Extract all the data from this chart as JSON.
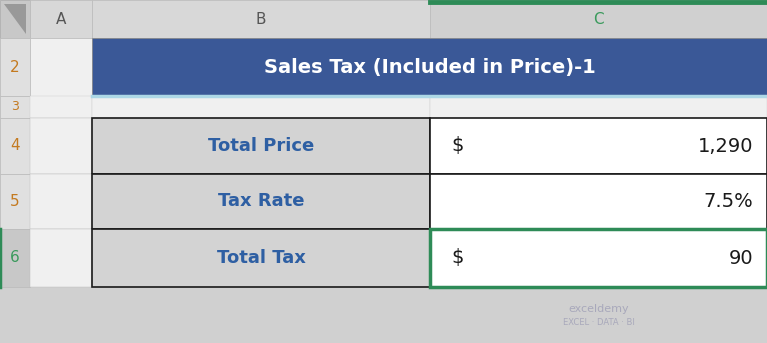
{
  "title": "Sales Tax (Included in Price)-1",
  "title_bg": "#3A5897",
  "title_fg": "#FFFFFF",
  "table_rows": [
    {
      "label": "Total Price",
      "dollar": "$",
      "value": "1,290"
    },
    {
      "label": "Tax Rate",
      "dollar": "",
      "value": "7.5%"
    },
    {
      "label": "Total Tax",
      "dollar": "$",
      "value": "90"
    }
  ],
  "label_bg": "#D3D3D3",
  "value_bg": "#FFFFFF",
  "label_fg": "#2E5FA3",
  "value_fg": "#1A1A1A",
  "border_color": "#1A1A1A",
  "green_border": "#2E8B57",
  "col_header_fg_green": "#3A9A5C",
  "col_header_fg_normal": "#555555",
  "row_num_color": "#C47A20",
  "outer_bg": "#D0D0D0",
  "col_header_bg": "#D8D8D8",
  "col_header_highlighted_bg": "#D0D0D0",
  "row_header_bg": "#E0E0E0",
  "corner_bg": "#C8C8C8",
  "watermark1": "exceldemy",
  "watermark2": "EXCEL · DATA · BI",
  "light_blue_line": "#ADD8E6",
  "row6_header_bg": "#C8C8C8"
}
